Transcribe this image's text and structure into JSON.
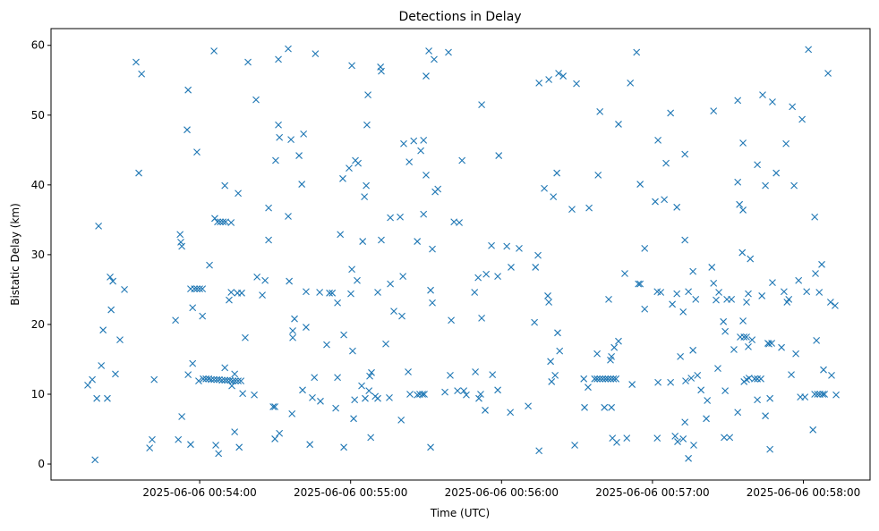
{
  "chart_data": {
    "type": "scatter",
    "title": "Detections in Delay",
    "xlabel": "Time (UTC)",
    "ylabel": "Bistatic Delay (km)",
    "x_units": "seconds relative to 2025-06-06 00:54:00",
    "xlim": [
      -59.1,
      266.5
    ],
    "ylim": [
      -2.3,
      62.4
    ],
    "grid": false,
    "marker": "x",
    "color": "#1f77b4",
    "x_ticks": [
      {
        "value": 0,
        "label": "2025-06-06 00:54:00"
      },
      {
        "value": 60,
        "label": "2025-06-06 00:55:00"
      },
      {
        "value": 120,
        "label": "2025-06-06 00:56:00"
      },
      {
        "value": 180,
        "label": "2025-06-06 00:57:00"
      },
      {
        "value": 240,
        "label": "2025-06-06 00:58:00"
      }
    ],
    "y_ticks": [
      {
        "value": 0,
        "label": "0"
      },
      {
        "value": 10,
        "label": "10"
      },
      {
        "value": 20,
        "label": "20"
      },
      {
        "value": 30,
        "label": "30"
      },
      {
        "value": 40,
        "label": "40"
      },
      {
        "value": 50,
        "label": "50"
      },
      {
        "value": 60,
        "label": "60"
      }
    ],
    "points": [
      [
        -44.5,
        11.3
      ],
      [
        -42.7,
        12.1
      ],
      [
        -41.6,
        0.6
      ],
      [
        -40.9,
        9.4
      ],
      [
        -40.2,
        34.1
      ],
      [
        -39.1,
        14.1
      ],
      [
        -38.4,
        19.2
      ],
      [
        -36.7,
        9.4
      ],
      [
        -35.6,
        26.8
      ],
      [
        -35.2,
        22.1
      ],
      [
        -34.5,
        26.2
      ],
      [
        -33.5,
        12.9
      ],
      [
        -31.7,
        17.8
      ],
      [
        -29.9,
        25.0
      ],
      [
        -25.3,
        57.6
      ],
      [
        -24.2,
        41.7
      ],
      [
        -23.1,
        55.9
      ],
      [
        -19.9,
        2.3
      ],
      [
        -18.9,
        3.5
      ],
      [
        -18.1,
        12.1
      ],
      [
        -9.6,
        20.6
      ],
      [
        -8.5,
        3.5
      ],
      [
        -7.8,
        32.9
      ],
      [
        -7.5,
        31.8
      ],
      [
        -7.1,
        31.2
      ],
      [
        -7.1,
        6.8
      ],
      [
        -5.0,
        47.9
      ],
      [
        -4.6,
        53.6
      ],
      [
        -4.6,
        12.8
      ],
      [
        -3.6,
        2.8
      ],
      [
        -3.6,
        25.1
      ],
      [
        -2.8,
        22.4
      ],
      [
        -2.8,
        14.4
      ],
      [
        -2.1,
        25.1
      ],
      [
        -1.1,
        25.1
      ],
      [
        0,
        25.1
      ],
      [
        1.1,
        25.1
      ],
      [
        -1.1,
        44.7
      ],
      [
        -0.4,
        11.9
      ],
      [
        1.1,
        21.2
      ],
      [
        1.4,
        12.2
      ],
      [
        2.5,
        12.2
      ],
      [
        3.6,
        12.2
      ],
      [
        4.6,
        12.1
      ],
      [
        5.7,
        12.1
      ],
      [
        6.8,
        12.1
      ],
      [
        7.8,
        12.1
      ],
      [
        8.9,
        12.0
      ],
      [
        10.0,
        12.0
      ],
      [
        11.0,
        12.0
      ],
      [
        12.1,
        12.0
      ],
      [
        13.2,
        11.9
      ],
      [
        14.2,
        11.9
      ],
      [
        15.3,
        11.9
      ],
      [
        16.4,
        11.9
      ],
      [
        3.9,
        28.5
      ],
      [
        5.7,
        59.2
      ],
      [
        6.0,
        35.2
      ],
      [
        7.1,
        34.7
      ],
      [
        8.2,
        34.7
      ],
      [
        9.3,
        34.7
      ],
      [
        10.3,
        34.7
      ],
      [
        12.5,
        34.6
      ],
      [
        6.4,
        2.7
      ],
      [
        7.5,
        1.5
      ],
      [
        10.0,
        39.9
      ],
      [
        10.0,
        13.8
      ],
      [
        11.7,
        23.5
      ],
      [
        12.5,
        24.6
      ],
      [
        12.8,
        11.2
      ],
      [
        13.9,
        4.6
      ],
      [
        13.9,
        12.9
      ],
      [
        15.0,
        24.5
      ],
      [
        15.3,
        38.8
      ],
      [
        15.7,
        2.4
      ],
      [
        16.7,
        24.5
      ],
      [
        17.1,
        10.1
      ],
      [
        18.1,
        18.1
      ],
      [
        19.2,
        57.6
      ],
      [
        21.7,
        9.9
      ],
      [
        22.4,
        52.2
      ],
      [
        22.8,
        26.8
      ],
      [
        24.9,
        24.2
      ],
      [
        26.0,
        26.3
      ],
      [
        27.4,
        36.7
      ],
      [
        27.4,
        32.1
      ],
      [
        29.2,
        8.2
      ],
      [
        29.9,
        8.2
      ],
      [
        30.2,
        43.5
      ],
      [
        29.9,
        3.6
      ],
      [
        31.3,
        58.0
      ],
      [
        31.3,
        48.6
      ],
      [
        31.7,
        46.8
      ],
      [
        31.7,
        4.4
      ],
      [
        35.2,
        35.5
      ],
      [
        35.2,
        59.5
      ],
      [
        35.6,
        26.2
      ],
      [
        36.3,
        46.5
      ],
      [
        36.7,
        7.2
      ],
      [
        37.0,
        19.1
      ],
      [
        37.0,
        18.1
      ],
      [
        37.7,
        20.8
      ],
      [
        39.5,
        44.2
      ],
      [
        40.6,
        40.1
      ],
      [
        40.9,
        10.6
      ],
      [
        41.3,
        47.3
      ],
      [
        42.3,
        24.7
      ],
      [
        42.3,
        19.6
      ],
      [
        43.8,
        2.8
      ],
      [
        44.8,
        9.5
      ],
      [
        45.6,
        12.4
      ],
      [
        46.0,
        58.8
      ],
      [
        47.7,
        24.6
      ],
      [
        48.0,
        9.0
      ],
      [
        50.5,
        17.1
      ],
      [
        51.6,
        24.5
      ],
      [
        52.7,
        24.5
      ],
      [
        54.1,
        8.0
      ],
      [
        54.8,
        12.4
      ],
      [
        54.8,
        23.1
      ],
      [
        55.9,
        32.9
      ],
      [
        56.9,
        40.9
      ],
      [
        57.3,
        2.4
      ],
      [
        57.3,
        18.5
      ],
      [
        59.4,
        42.4
      ],
      [
        60.1,
        24.4
      ],
      [
        60.5,
        57.1
      ],
      [
        60.5,
        27.9
      ],
      [
        60.8,
        16.2
      ],
      [
        61.2,
        6.5
      ],
      [
        61.6,
        9.2
      ],
      [
        61.9,
        43.5
      ],
      [
        62.6,
        26.3
      ],
      [
        63.0,
        43.1
      ],
      [
        64.4,
        11.2
      ],
      [
        64.8,
        31.9
      ],
      [
        65.5,
        38.3
      ],
      [
        65.8,
        9.4
      ],
      [
        66.2,
        39.9
      ],
      [
        66.5,
        48.6
      ],
      [
        66.9,
        52.9
      ],
      [
        67.3,
        10.5
      ],
      [
        67.6,
        12.6
      ],
      [
        68.0,
        3.8
      ],
      [
        68.3,
        13.1
      ],
      [
        69.8,
        9.7
      ],
      [
        70.8,
        9.4
      ],
      [
        70.8,
        24.6
      ],
      [
        71.9,
        56.9
      ],
      [
        72.2,
        32.1
      ],
      [
        72.2,
        56.3
      ],
      [
        74.0,
        17.2
      ],
      [
        75.4,
        9.5
      ],
      [
        75.8,
        35.3
      ],
      [
        75.8,
        25.8
      ],
      [
        77.2,
        21.9
      ],
      [
        79.7,
        35.4
      ],
      [
        80.1,
        6.3
      ],
      [
        80.4,
        21.2
      ],
      [
        80.8,
        26.9
      ],
      [
        81.1,
        45.9
      ],
      [
        82.9,
        13.2
      ],
      [
        83.3,
        43.3
      ],
      [
        83.6,
        10.0
      ],
      [
        85.1,
        46.3
      ],
      [
        86.5,
        9.9
      ],
      [
        86.5,
        31.9
      ],
      [
        87.5,
        10.0
      ],
      [
        88.6,
        10.0
      ],
      [
        89.3,
        10.0
      ],
      [
        87.9,
        44.9
      ],
      [
        89.0,
        35.8
      ],
      [
        89.0,
        46.4
      ],
      [
        90.0,
        55.6
      ],
      [
        90.0,
        41.4
      ],
      [
        91.1,
        59.2
      ],
      [
        91.8,
        24.9
      ],
      [
        91.8,
        2.4
      ],
      [
        92.5,
        23.1
      ],
      [
        92.5,
        30.8
      ],
      [
        93.2,
        58.0
      ],
      [
        93.6,
        39.0
      ],
      [
        94.7,
        39.4
      ],
      [
        97.5,
        10.3
      ],
      [
        98.9,
        59.0
      ],
      [
        99.6,
        12.7
      ],
      [
        100.0,
        20.6
      ],
      [
        101.1,
        34.7
      ],
      [
        102.5,
        10.5
      ],
      [
        103.2,
        34.6
      ],
      [
        104.3,
        43.5
      ],
      [
        105.0,
        10.5
      ],
      [
        106.0,
        9.9
      ],
      [
        109.3,
        24.6
      ],
      [
        109.6,
        13.2
      ],
      [
        110.7,
        26.7
      ],
      [
        111.0,
        9.4
      ],
      [
        111.7,
        10.0
      ],
      [
        112.1,
        20.9
      ],
      [
        112.1,
        51.5
      ],
      [
        113.5,
        7.7
      ],
      [
        113.9,
        27.2
      ],
      [
        116.0,
        31.3
      ],
      [
        116.4,
        12.8
      ],
      [
        118.5,
        10.6
      ],
      [
        118.5,
        26.9
      ],
      [
        118.9,
        44.2
      ],
      [
        122.1,
        31.2
      ],
      [
        123.5,
        7.4
      ],
      [
        123.8,
        28.2
      ],
      [
        127.0,
        30.9
      ],
      [
        130.6,
        8.3
      ],
      [
        133.1,
        20.3
      ],
      [
        133.5,
        28.2
      ],
      [
        134.5,
        29.9
      ],
      [
        134.9,
        1.9
      ],
      [
        134.9,
        54.6
      ],
      [
        137.0,
        39.5
      ],
      [
        138.4,
        24.1
      ],
      [
        138.8,
        55.1
      ],
      [
        138.8,
        23.2
      ],
      [
        139.5,
        14.7
      ],
      [
        139.9,
        11.8
      ],
      [
        140.6,
        38.3
      ],
      [
        141.3,
        12.7
      ],
      [
        142.0,
        41.7
      ],
      [
        142.3,
        18.8
      ],
      [
        142.7,
        56.0
      ],
      [
        143.1,
        16.2
      ],
      [
        144.5,
        55.6
      ],
      [
        148.0,
        36.5
      ],
      [
        149.1,
        2.7
      ],
      [
        149.8,
        54.5
      ],
      [
        152.7,
        12.2
      ],
      [
        153.0,
        8.1
      ],
      [
        154.4,
        11.0
      ],
      [
        154.8,
        36.7
      ],
      [
        157.0,
        12.2
      ],
      [
        158.0,
        12.2
      ],
      [
        159.1,
        12.2
      ],
      [
        160.2,
        12.2
      ],
      [
        161.3,
        12.2
      ],
      [
        162.3,
        12.2
      ],
      [
        163.4,
        12.2
      ],
      [
        164.5,
        12.2
      ],
      [
        165.5,
        12.2
      ],
      [
        158.0,
        15.8
      ],
      [
        158.4,
        41.4
      ],
      [
        159.1,
        50.5
      ],
      [
        160.9,
        8.1
      ],
      [
        162.6,
        23.6
      ],
      [
        163.3,
        14.9
      ],
      [
        163.7,
        15.4
      ],
      [
        163.7,
        8.1
      ],
      [
        164.1,
        3.7
      ],
      [
        164.8,
        16.7
      ],
      [
        165.8,
        3.1
      ],
      [
        166.5,
        48.7
      ],
      [
        166.5,
        17.6
      ],
      [
        169.0,
        27.3
      ],
      [
        169.8,
        3.7
      ],
      [
        171.2,
        54.6
      ],
      [
        171.9,
        11.4
      ],
      [
        173.7,
        59.0
      ],
      [
        174.4,
        25.8
      ],
      [
        175.1,
        25.8
      ],
      [
        175.1,
        40.1
      ],
      [
        176.9,
        30.9
      ],
      [
        176.9,
        22.2
      ],
      [
        181.1,
        37.6
      ],
      [
        181.9,
        24.7
      ],
      [
        181.9,
        3.7
      ],
      [
        182.2,
        46.4
      ],
      [
        182.2,
        11.7
      ],
      [
        183.3,
        24.6
      ],
      [
        184.7,
        37.9
      ],
      [
        185.4,
        43.1
      ],
      [
        187.2,
        50.3
      ],
      [
        187.2,
        11.7
      ],
      [
        187.9,
        22.9
      ],
      [
        189.0,
        4.0
      ],
      [
        189.7,
        24.4
      ],
      [
        189.7,
        36.8
      ],
      [
        190.0,
        3.2
      ],
      [
        191.1,
        15.4
      ],
      [
        192.2,
        21.8
      ],
      [
        192.2,
        3.6
      ],
      [
        192.9,
        32.1
      ],
      [
        192.9,
        44.4
      ],
      [
        192.9,
        6.0
      ],
      [
        193.2,
        11.9
      ],
      [
        194.3,
        24.7
      ],
      [
        194.3,
        0.8
      ],
      [
        195.4,
        12.3
      ],
      [
        196.1,
        16.3
      ],
      [
        196.1,
        27.6
      ],
      [
        196.4,
        2.7
      ],
      [
        197.2,
        23.6
      ],
      [
        197.9,
        12.7
      ],
      [
        199.3,
        10.6
      ],
      [
        201.4,
        6.5
      ],
      [
        201.8,
        9.1
      ],
      [
        203.6,
        28.2
      ],
      [
        204.3,
        50.6
      ],
      [
        204.3,
        25.9
      ],
      [
        205.3,
        23.5
      ],
      [
        206.0,
        13.7
      ],
      [
        206.4,
        24.6
      ],
      [
        208.2,
        20.4
      ],
      [
        208.5,
        3.8
      ],
      [
        208.9,
        19.0
      ],
      [
        208.9,
        10.5
      ],
      [
        209.6,
        23.6
      ],
      [
        210.7,
        3.8
      ],
      [
        211.4,
        23.6
      ],
      [
        212.4,
        16.4
      ],
      [
        213.9,
        40.4
      ],
      [
        213.9,
        52.1
      ],
      [
        213.9,
        7.4
      ],
      [
        214.6,
        37.2
      ],
      [
        214.9,
        18.2
      ],
      [
        215.7,
        30.3
      ],
      [
        216.0,
        36.4
      ],
      [
        216.4,
        18.2
      ],
      [
        217.4,
        18.2
      ],
      [
        216.0,
        46.0
      ],
      [
        216.0,
        20.5
      ],
      [
        216.4,
        11.8
      ],
      [
        217.4,
        23.2
      ],
      [
        217.4,
        12.1
      ],
      [
        218.1,
        16.8
      ],
      [
        218.1,
        24.4
      ],
      [
        218.4,
        12.3
      ],
      [
        218.9,
        29.4
      ],
      [
        219.6,
        17.8
      ],
      [
        220.6,
        12.2
      ],
      [
        221.7,
        12.2
      ],
      [
        223.1,
        12.2
      ],
      [
        221.7,
        42.9
      ],
      [
        221.7,
        9.2
      ],
      [
        223.5,
        24.1
      ],
      [
        223.8,
        52.9
      ],
      [
        224.9,
        39.9
      ],
      [
        224.9,
        6.9
      ],
      [
        225.9,
        17.3
      ],
      [
        226.3,
        17.2
      ],
      [
        226.7,
        9.4
      ],
      [
        226.7,
        2.1
      ],
      [
        227.4,
        17.3
      ],
      [
        227.7,
        26.0
      ],
      [
        227.7,
        51.9
      ],
      [
        229.2,
        41.7
      ],
      [
        231.3,
        16.7
      ],
      [
        232.3,
        24.7
      ],
      [
        233.1,
        45.9
      ],
      [
        233.5,
        23.2
      ],
      [
        234.2,
        23.6
      ],
      [
        235.2,
        12.8
      ],
      [
        235.6,
        51.2
      ],
      [
        236.3,
        39.9
      ],
      [
        237.0,
        15.8
      ],
      [
        238.1,
        26.3
      ],
      [
        238.8,
        9.6
      ],
      [
        239.5,
        49.4
      ],
      [
        240.6,
        9.6
      ],
      [
        241.3,
        24.7
      ],
      [
        242.0,
        59.4
      ],
      [
        243.8,
        4.9
      ],
      [
        244.5,
        35.4
      ],
      [
        244.5,
        10.0
      ],
      [
        245.6,
        10.0
      ],
      [
        246.6,
        10.0
      ],
      [
        247.7,
        10.0
      ],
      [
        248.4,
        10.0
      ],
      [
        244.8,
        27.3
      ],
      [
        245.2,
        17.7
      ],
      [
        246.3,
        24.6
      ],
      [
        247.3,
        28.6
      ],
      [
        248.0,
        13.5
      ],
      [
        249.8,
        56.0
      ],
      [
        250.8,
        23.2
      ],
      [
        251.2,
        12.7
      ],
      [
        252.6,
        22.7
      ],
      [
        253.0,
        9.9
      ]
    ]
  }
}
